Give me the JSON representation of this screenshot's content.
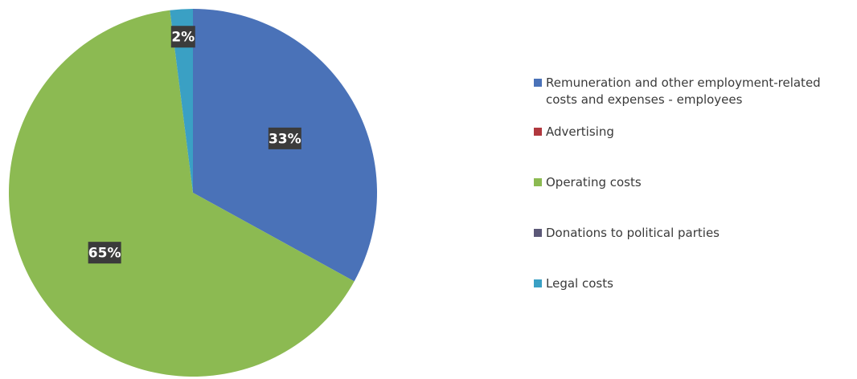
{
  "chart_data": {
    "type": "pie",
    "categories": [
      "Remuneration and other employment-related costs and expenses - employees",
      "Advertising",
      "Operating costs",
      "Donations to political parties",
      "Legal costs"
    ],
    "values": [
      33,
      0,
      65,
      0,
      2
    ],
    "data_labels": [
      "33%",
      "",
      "65%",
      "",
      "2%"
    ],
    "colors": [
      "#4a72b8",
      "#b0383e",
      "#8cba52",
      "#5b5877",
      "#3aa0c4"
    ],
    "start_angle_deg": 0,
    "direction": "clockwise",
    "legend_position": "right"
  }
}
